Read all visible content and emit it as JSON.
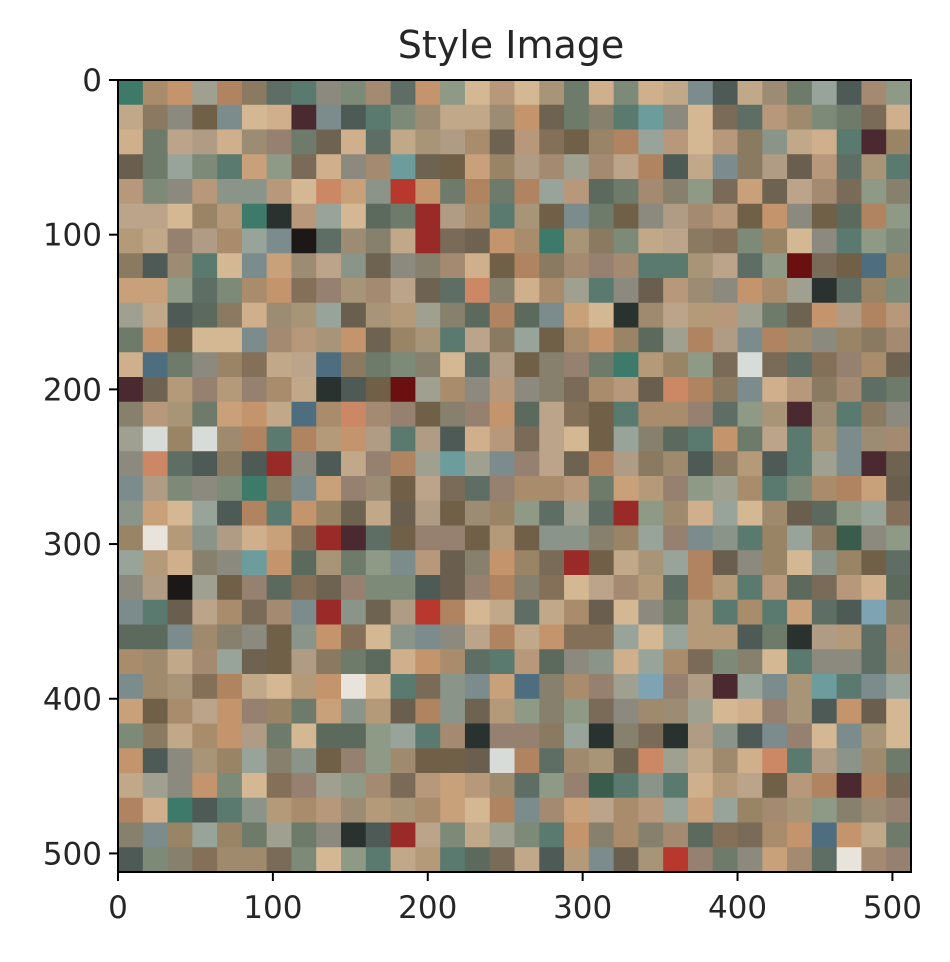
{
  "chart_data": {
    "type": "heatmap",
    "title": "Style Image",
    "xlabel": "",
    "ylabel": "",
    "xlim": [
      0,
      512
    ],
    "ylim": [
      512,
      0
    ],
    "grid": false,
    "xticks": [
      0,
      100,
      200,
      300,
      400,
      500
    ],
    "yticks": [
      0,
      100,
      200,
      300,
      400,
      500
    ],
    "image_size": [
      512,
      512
    ],
    "patch_size": 16,
    "grid_rows": 32,
    "grid_cols": 32,
    "palette": [
      "#a08a6e",
      "#8a7a62",
      "#b49a78",
      "#6e7a6a",
      "#5e6e64",
      "#c8a07a",
      "#9a8466",
      "#7e8a78",
      "#a89476",
      "#8c8a7e",
      "#b8987a",
      "#6a5e4e",
      "#4e5a56",
      "#a48a70",
      "#c0a888",
      "#7a6a58",
      "#8e9a86",
      "#b08460",
      "#5a7a70",
      "#968070",
      "#d0b08c",
      "#847058",
      "#6e6250",
      "#a0a090",
      "#bca48a",
      "#9c8c74",
      "#7c8c8c",
      "#c4946c",
      "#5c6a5e",
      "#a88c6c",
      "#8a9488",
      "#b09c84",
      "#706048",
      "#98a49a",
      "#d4b894",
      "#86806c"
    ],
    "accent_patches": [
      "#b8382e",
      "#2a3230",
      "#d8dcd8",
      "#6a1010",
      "#3a5c4c",
      "#7ea4b4",
      "#e8e4dc",
      "#4e6e80",
      "#9a2a28",
      "#3e7a6a",
      "#1c1818",
      "#cc8864",
      "#6c9c9c",
      "#4a2a30"
    ]
  }
}
